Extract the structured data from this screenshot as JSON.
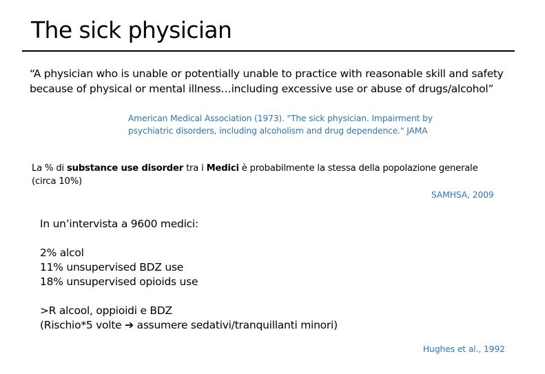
{
  "title": "The sick physician",
  "quote": "“A physician who is unable or potentially unable to practice with reasonable skill and safety because of physical or mental illness…including excessive use or abuse of drugs/alcohol”",
  "quote_citation": {
    "line1": "American Medical Association (1973). \"The sick physician. Impairment by",
    "line2": "psychiatric disorders, including alcoholism and drug dependence.\" JAMA"
  },
  "sud_statement": {
    "part1": "La % di ",
    "bold1": "substance use disorder",
    "part2": " tra i ",
    "bold2": "Medici",
    "part3": " è probabilmente la stessa della popolazione generale (circa 10%)"
  },
  "sud_citation": "SAMHSA, 2009",
  "survey": {
    "intro": "In un’intervista a 9600 medici:",
    "stats": [
      "2% alcol",
      "11% unsupervised BDZ use",
      "18% unsupervised opioids use"
    ],
    "risk": ">R alcool, oppioidi e BDZ",
    "risk_detail_pre": "(Rischio*5 volte ",
    "risk_arrow": "➔",
    "risk_detail_post": " assumere sedativi/tranquillanti minori)"
  },
  "survey_citation": "Hughes et al., 1992"
}
